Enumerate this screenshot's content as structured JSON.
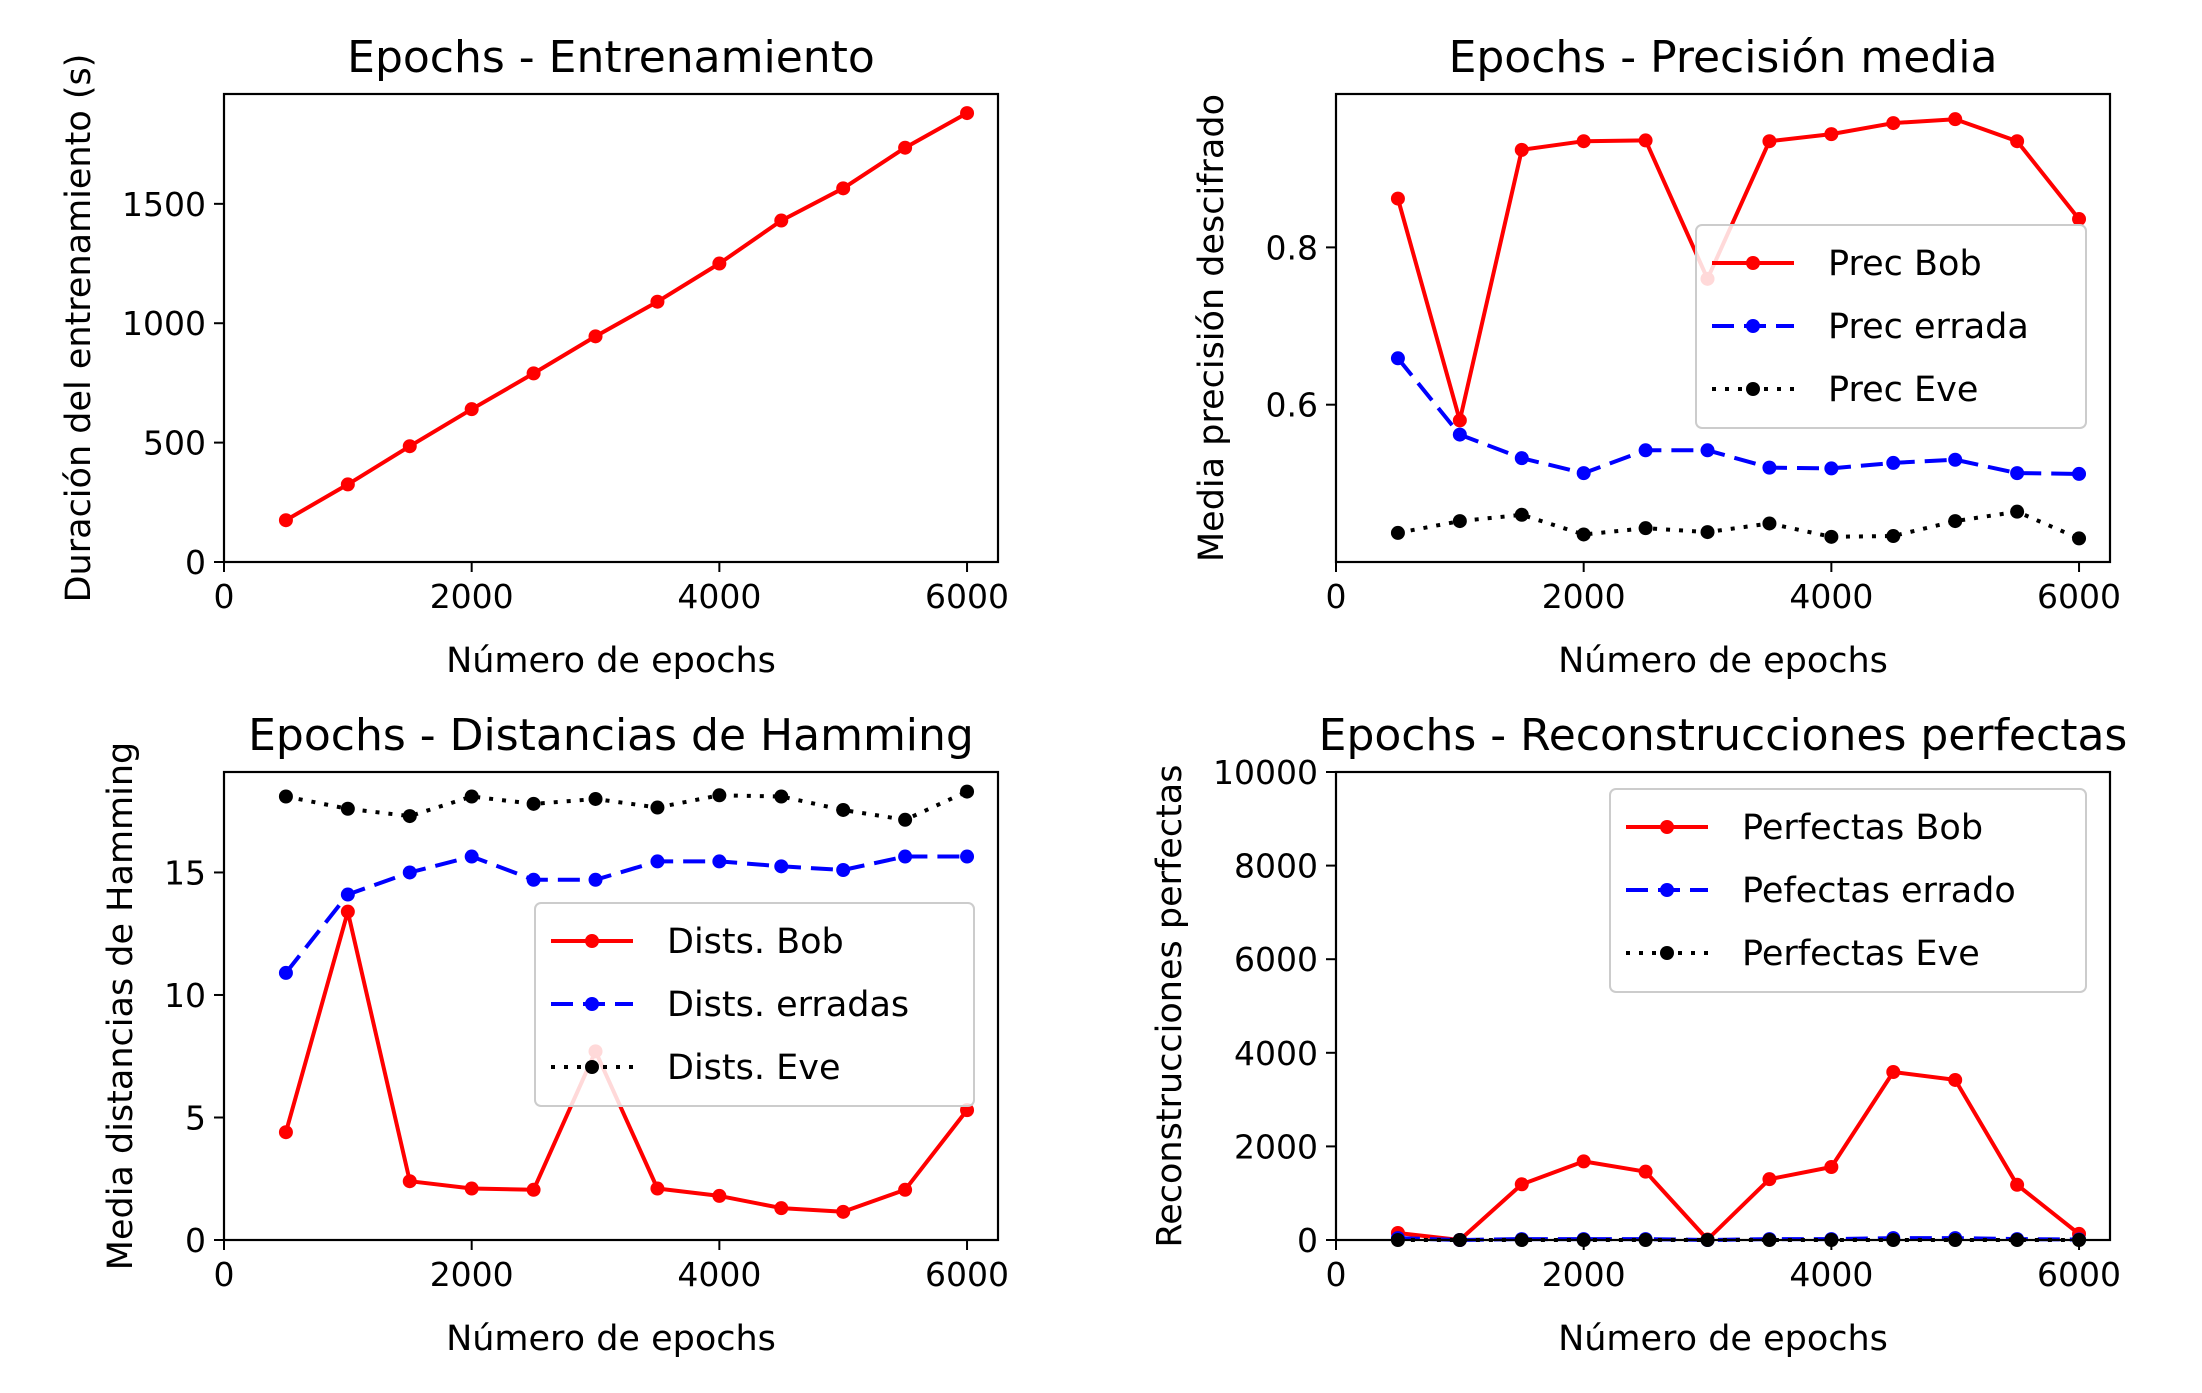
{
  "chart_data": [
    {
      "type": "line",
      "title": "Epochs - Entrenamiento",
      "xlabel": "Número de epochs",
      "ylabel": "Duración del entrenamiento (s)",
      "xlim": [
        0,
        6250
      ],
      "ylim": [
        0,
        1960
      ],
      "xticks": [
        0,
        2000,
        4000,
        6000
      ],
      "yticks": [
        0,
        500,
        1000,
        1500
      ],
      "legend": null,
      "x": [
        500,
        1000,
        1500,
        2000,
        2500,
        3000,
        3500,
        4000,
        4500,
        5000,
        5500,
        6000
      ],
      "series": [
        {
          "style": "solid",
          "color": "#ff0000",
          "values": [
            175,
            325,
            485,
            640,
            790,
            945,
            1090,
            1250,
            1430,
            1565,
            1735,
            1880
          ]
        }
      ]
    },
    {
      "type": "line",
      "title": "Epochs - Precisión media",
      "xlabel": "Número de epochs",
      "ylabel": "Media precisión descifrado",
      "xlim": [
        0,
        6250
      ],
      "ylim": [
        0.4,
        0.995
      ],
      "xticks": [
        0,
        2000,
        4000,
        6000
      ],
      "yticks": [
        0.6,
        0.8
      ],
      "legend": "center-right",
      "x": [
        500,
        1000,
        1500,
        2000,
        2500,
        3000,
        3500,
        4000,
        4500,
        5000,
        5500,
        6000
      ],
      "series": [
        {
          "name": "Prec Bob",
          "style": "solid",
          "color": "#ff0000",
          "values": [
            0.862,
            0.58,
            0.924,
            0.935,
            0.936,
            0.76,
            0.935,
            0.944,
            0.958,
            0.963,
            0.935,
            0.836
          ]
        },
        {
          "name": "Prec errada",
          "style": "dashed",
          "color": "#0000ff",
          "values": [
            0.659,
            0.562,
            0.532,
            0.513,
            0.542,
            0.542,
            0.52,
            0.519,
            0.526,
            0.53,
            0.513,
            0.512
          ]
        },
        {
          "name": "Prec Eve",
          "style": "dotted",
          "color": "#000000",
          "values": [
            0.437,
            0.452,
            0.46,
            0.435,
            0.443,
            0.438,
            0.449,
            0.432,
            0.433,
            0.452,
            0.464,
            0.43
          ]
        }
      ]
    },
    {
      "type": "line",
      "title": "Epochs - Distancias de Hamming",
      "xlabel": "Número de epochs",
      "ylabel": "Media distancias de Hamming",
      "xlim": [
        0,
        6250
      ],
      "ylim": [
        0,
        19.1
      ],
      "xticks": [
        0,
        2000,
        4000,
        6000
      ],
      "yticks": [
        0,
        5,
        10,
        15
      ],
      "legend": "center-right",
      "x": [
        500,
        1000,
        1500,
        2000,
        2500,
        3000,
        3500,
        4000,
        4500,
        5000,
        5500,
        6000
      ],
      "series": [
        {
          "name": "Dists. Bob",
          "style": "solid",
          "color": "#ff0000",
          "values": [
            4.4,
            13.4,
            2.4,
            2.1,
            2.05,
            7.7,
            2.1,
            1.8,
            1.3,
            1.15,
            2.05,
            5.3
          ]
        },
        {
          "name": "Dists. erradas",
          "style": "dashed",
          "color": "#0000ff",
          "values": [
            10.9,
            14.1,
            15.0,
            15.65,
            14.7,
            14.7,
            15.45,
            15.45,
            15.25,
            15.1,
            15.65,
            15.65
          ]
        },
        {
          "name": "Dists. Eve",
          "style": "dotted",
          "color": "#000000",
          "values": [
            18.1,
            17.6,
            17.3,
            18.1,
            17.8,
            18.0,
            17.65,
            18.15,
            18.1,
            17.55,
            17.15,
            18.3
          ]
        }
      ]
    },
    {
      "type": "line",
      "title": "Epochs - Reconstrucciones perfectas",
      "xlabel": "Número de epochs",
      "ylabel": "Reconstrucciones perfectas",
      "xlim": [
        0,
        6250
      ],
      "ylim": [
        0,
        10000
      ],
      "xticks": [
        0,
        2000,
        4000,
        6000
      ],
      "yticks": [
        0,
        2000,
        4000,
        6000,
        8000,
        10000
      ],
      "legend": "upper-right",
      "x": [
        500,
        1000,
        1500,
        2000,
        2500,
        3000,
        3500,
        4000,
        4500,
        5000,
        5500,
        6000
      ],
      "series": [
        {
          "name": "Perfectas Bob",
          "style": "solid",
          "color": "#ff0000",
          "values": [
            150,
            0,
            1190,
            1680,
            1460,
            10,
            1300,
            1560,
            3590,
            3420,
            1180,
            130
          ]
        },
        {
          "name": "Pefectas errado",
          "style": "dashed",
          "color": "#0000ff",
          "values": [
            40,
            0,
            20,
            20,
            20,
            0,
            20,
            20,
            40,
            40,
            20,
            10
          ]
        },
        {
          "name": "Perfectas Eve",
          "style": "dotted",
          "color": "#000000",
          "values": [
            0,
            0,
            0,
            0,
            0,
            0,
            0,
            0,
            0,
            0,
            0,
            0
          ]
        }
      ]
    }
  ]
}
